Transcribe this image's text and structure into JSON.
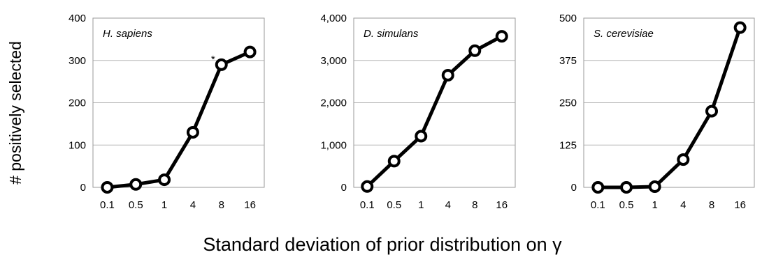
{
  "figure": {
    "ylabel": "# positively selected",
    "xlabel": "Standard deviation of prior distribution on γ"
  },
  "colors": {
    "line": "#000000",
    "marker_fill": "#ffffff",
    "grid": "#b5b5b5",
    "frame": "#9a9a9a"
  },
  "chart_data": [
    {
      "type": "line",
      "title": "H. sapiens",
      "categories": [
        "0.1",
        "0.5",
        "1",
        "4",
        "8",
        "16"
      ],
      "series": [
        {
          "values": [
            0,
            7,
            18,
            130,
            290,
            320
          ]
        }
      ],
      "ylim": [
        0,
        400
      ],
      "yticks": [
        0,
        100,
        200,
        300,
        400
      ],
      "ytick_labels": [
        "0",
        "100",
        "200",
        "300",
        "400"
      ],
      "grid": true,
      "annotations": [
        {
          "text": "*",
          "category": "8"
        }
      ]
    },
    {
      "type": "line",
      "title": "D. simulans",
      "categories": [
        "0.1",
        "0.5",
        "1",
        "4",
        "8",
        "16"
      ],
      "series": [
        {
          "values": [
            20,
            620,
            1210,
            2650,
            3230,
            3570
          ]
        }
      ],
      "ylim": [
        0,
        4000
      ],
      "yticks": [
        0,
        1000,
        2000,
        3000,
        4000
      ],
      "ytick_labels": [
        "0",
        "1,000",
        "2,000",
        "3,000",
        "4,000"
      ],
      "grid": true,
      "annotations": []
    },
    {
      "type": "line",
      "title": "S. cerevisiae",
      "categories": [
        "0.1",
        "0.5",
        "1",
        "4",
        "8",
        "16"
      ],
      "series": [
        {
          "values": [
            0,
            0,
            2,
            82,
            225,
            472
          ]
        }
      ],
      "ylim": [
        0,
        500
      ],
      "yticks": [
        0,
        125,
        250,
        375,
        500
      ],
      "ytick_labels": [
        "0",
        "125",
        "250",
        "375",
        "500"
      ],
      "grid": true,
      "annotations": []
    }
  ]
}
